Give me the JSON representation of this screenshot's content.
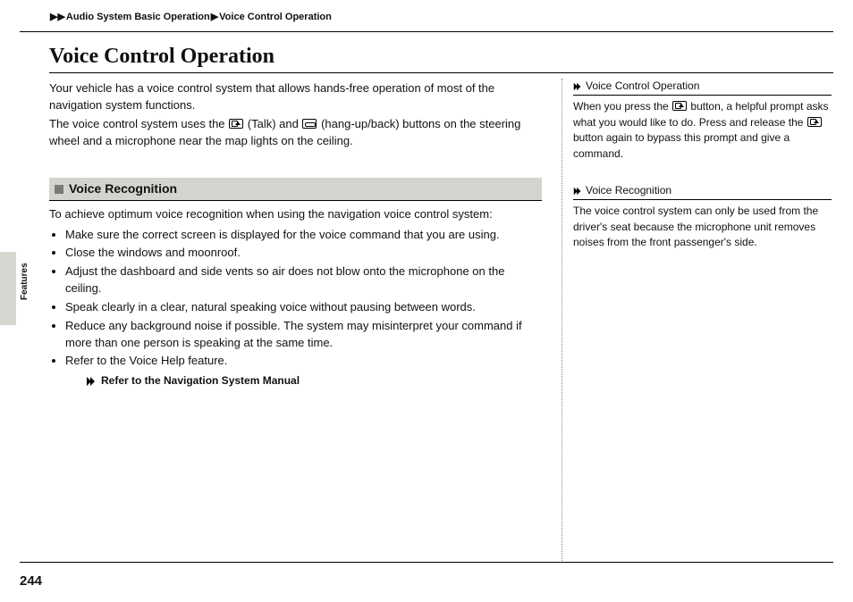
{
  "breadcrumb": {
    "level1": "Audio System Basic Operation",
    "level2": "Voice Control Operation"
  },
  "title": "Voice Control Operation",
  "intro": {
    "p1": "Your vehicle has a voice control system that allows hands-free operation of most of the navigation system functions.",
    "p2a": "The voice control system uses the ",
    "p2b": " (Talk) and ",
    "p2c": " (hang-up/back) buttons on the steering wheel and a microphone near the map lights on the ceiling."
  },
  "section": {
    "title": "Voice Recognition",
    "lead": "To achieve optimum voice recognition when using the navigation voice control system:",
    "bullets": [
      "Make sure the correct screen is displayed for the voice command that you are using.",
      "Close the windows and moonroof.",
      "Adjust the dashboard and side vents so air does not blow onto the microphone on the ceiling.",
      "Speak clearly in a clear, natural speaking voice without pausing between words.",
      "Reduce any background noise if possible. The system may misinterpret your command if more than one person is speaking at the same time.",
      "Refer to the Voice Help feature."
    ],
    "ref": "Refer to the Navigation System Manual"
  },
  "sidebar": {
    "box1": {
      "title": "Voice Control Operation",
      "a": "When you press the ",
      "b": " button, a helpful prompt asks what you would like to do. Press and release the ",
      "c": " button again to bypass this prompt and give a command."
    },
    "box2": {
      "title": "Voice Recognition",
      "body": "The voice control system can only be used from the driver's seat because the microphone unit removes noises from the front passenger's side."
    }
  },
  "tabLabel": "Features",
  "pageNumber": "244"
}
